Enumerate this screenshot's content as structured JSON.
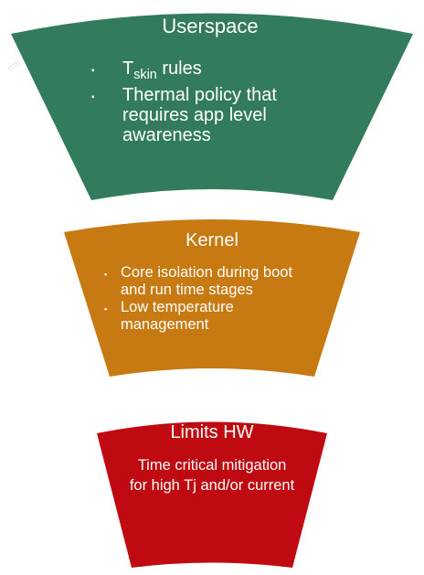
{
  "userspace": {
    "title": "Userspace",
    "item1_prefix": "T",
    "item1_sub": "skin",
    "item1_suffix": " rules",
    "item2": "Thermal policy that requires app level awareness",
    "color": "#327b5c"
  },
  "kernel": {
    "title": "Kernel",
    "items": [
      "Core isolation during boot and run time stages",
      "Low temperature management"
    ],
    "color": "#c77912"
  },
  "limits_hw": {
    "title": "Limits HW",
    "description": "Time critical mitigation for high Tj and/or current",
    "color": "#be0a10"
  },
  "bullet": "▪"
}
